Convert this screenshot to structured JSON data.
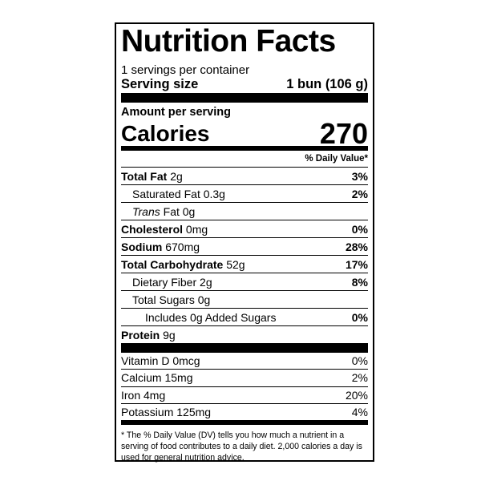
{
  "header": {
    "title": "Nutrition Facts",
    "servings": "1 servings per container",
    "serving_size_label": "Serving size",
    "serving_size_value": "1 bun (106 g)"
  },
  "calories": {
    "amount_label": "Amount per serving",
    "label": "Calories",
    "value": "270"
  },
  "dv_header": "% Daily Value*",
  "nutrients": [
    {
      "name": "Total Fat",
      "amount": "2g",
      "dv": "3%"
    },
    {
      "name": "Saturated Fat",
      "amount": "0.3g",
      "dv": "2%"
    },
    {
      "prefix": "Trans",
      "name": "Fat",
      "amount": "0g"
    },
    {
      "name": "Cholesterol",
      "amount": "0mg",
      "dv": "0%"
    },
    {
      "name": "Sodium",
      "amount": "670mg",
      "dv": "28%"
    },
    {
      "name": "Total Carbohydrate",
      "amount": "52g",
      "dv": "17%"
    },
    {
      "name": "Dietary Fiber",
      "amount": "2g",
      "dv": "8%"
    },
    {
      "name": "Total Sugars",
      "amount": "0g"
    },
    {
      "name": "Includes 0g Added Sugars",
      "dv": "0%"
    },
    {
      "name": "Protein",
      "amount": "9g"
    }
  ],
  "vitamins": [
    {
      "name": "Vitamin D",
      "amount": "0mcg",
      "dv": "0%"
    },
    {
      "name": "Calcium",
      "amount": "15mg",
      "dv": "2%"
    },
    {
      "name": "Iron",
      "amount": "4mg",
      "dv": "20%"
    },
    {
      "name": "Potassium",
      "amount": "125mg",
      "dv": "4%"
    }
  ],
  "footnote": "* The % Daily Value (DV) tells you how much a nutrient in a serving of food contributes to a daily diet. 2,000 calories a day is used for general nutrition advice."
}
